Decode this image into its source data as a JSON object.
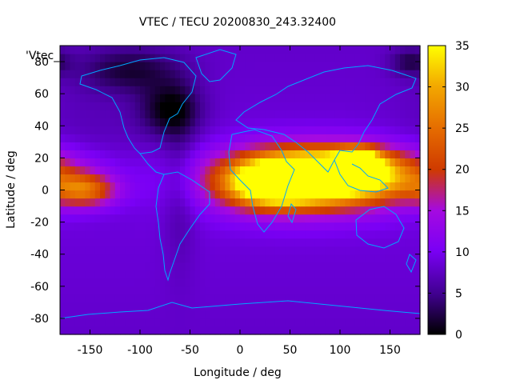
{
  "chart_data": {
    "type": "heatmap",
    "title": "VTEC / TECU 20200830_243.32400",
    "xlabel": "Longitude / deg",
    "ylabel": "Latitude / deg",
    "series_label": "'Vtec_",
    "xlim": [
      -180,
      180
    ],
    "ylim": [
      -90,
      90
    ],
    "x_ticks": [
      -150,
      -100,
      -50,
      0,
      50,
      100,
      150
    ],
    "y_ticks": [
      -80,
      -60,
      -40,
      -20,
      0,
      20,
      40,
      60,
      80
    ],
    "colorbar": {
      "range": [
        0,
        35
      ],
      "ticks": [
        0,
        5,
        10,
        15,
        20,
        25,
        30,
        35
      ],
      "colormap": "gnuplot"
    },
    "background_vtec_tecu": 9,
    "features": [
      {
        "lon": 100,
        "lat": 10,
        "value": 26,
        "lon_width": 60,
        "lat_width": 11
      },
      {
        "lon": 118,
        "lat": 16,
        "value": 31,
        "lon_width": 14,
        "lat_width": 6
      },
      {
        "lon": 60,
        "lat": 6,
        "value": 20,
        "lon_width": 60,
        "lat_width": 14
      },
      {
        "lon": 30,
        "lat": 4,
        "value": 19,
        "lon_width": 28,
        "lat_width": 9
      },
      {
        "lon": -155,
        "lat": 0,
        "value": 14,
        "lon_width": 22,
        "lat_width": 7
      },
      {
        "lon": -70,
        "lat": 50,
        "value": -8,
        "lon_width": 22,
        "lat_width": 12
      },
      {
        "lon": -110,
        "lat": 75,
        "value": -6,
        "lon_width": 35,
        "lat_width": 10
      },
      {
        "lon": -60,
        "lat": 5,
        "value": -3,
        "lon_width": 12,
        "lat_width": 35
      },
      {
        "lon": 170,
        "lat": 80,
        "value": -5,
        "lon_width": 14,
        "lat_width": 6
      },
      {
        "lon": -150,
        "lat": 35,
        "value": -1.5,
        "lon_width": 40,
        "lat_width": 25
      }
    ]
  }
}
